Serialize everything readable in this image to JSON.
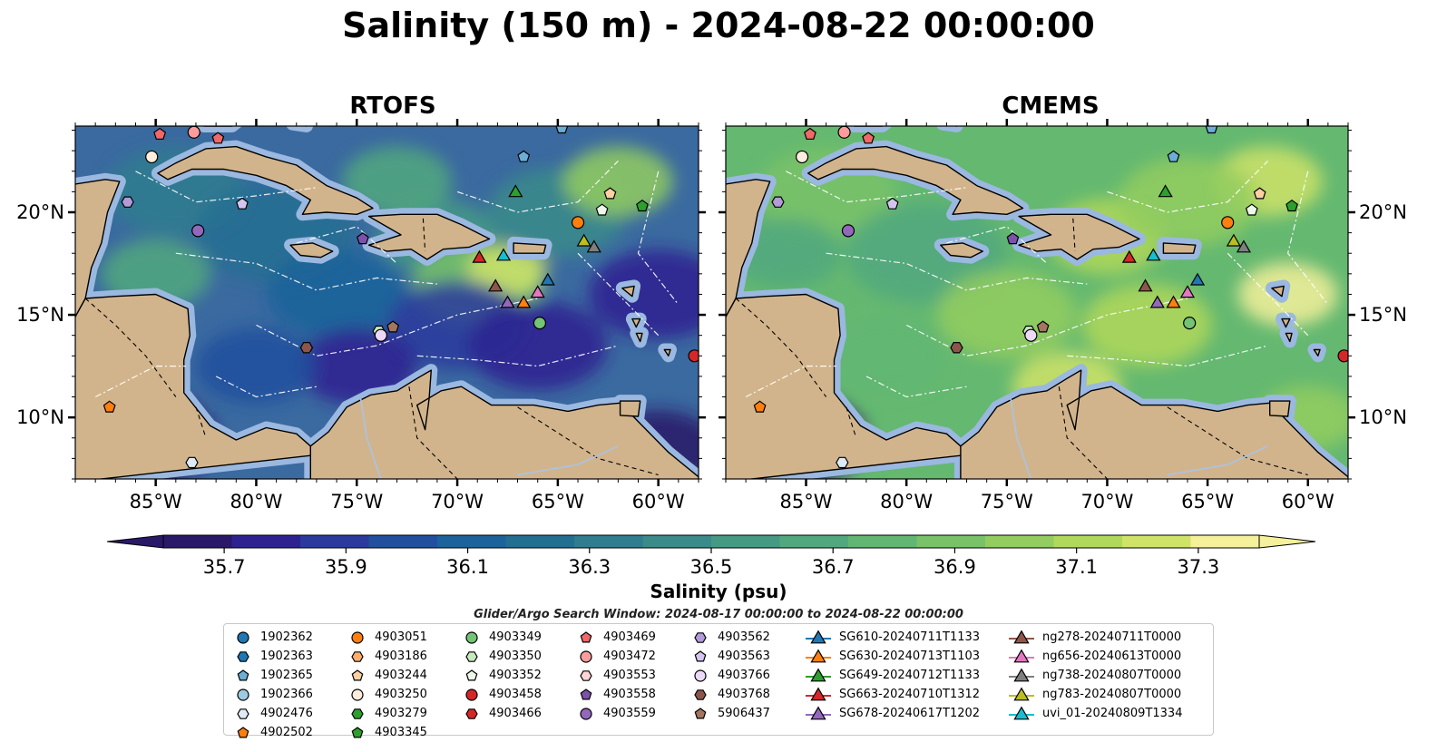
{
  "title": "Salinity (150 m) - 2024-08-22 00:00:00",
  "panels": [
    {
      "id": "left",
      "title": "RTOFS",
      "ocean_base": "#3b6aa0"
    },
    {
      "id": "right",
      "title": "CMEMS",
      "ocean_base": "#64b870"
    }
  ],
  "map": {
    "lon_range": [
      -89,
      -58
    ],
    "lat_range": [
      7,
      24.2
    ],
    "x_ticks": [
      -85,
      -80,
      -75,
      -70,
      -65,
      -60
    ],
    "x_tick_labels": [
      "85°W",
      "80°W",
      "75°W",
      "70°W",
      "65°W",
      "60°W"
    ],
    "y_ticks": [
      10,
      15,
      20
    ],
    "y_tick_labels": [
      "10°N",
      "15°N",
      "20°N"
    ],
    "land_color": "#d2b48c",
    "shelf_color": "#9ab8e0"
  },
  "colorbar": {
    "label": "Salinity (psu)",
    "min": 35.6,
    "max": 37.4,
    "ticks": [
      35.7,
      35.9,
      36.1,
      36.3,
      36.5,
      36.7,
      36.9,
      37.1,
      37.3
    ],
    "tick_labels": [
      "35.7",
      "35.9",
      "36.1",
      "36.3",
      "36.5",
      "36.7",
      "36.9",
      "37.1",
      "37.3"
    ],
    "colors": [
      "#2a1868",
      "#2d2290",
      "#2b3a9c",
      "#22509e",
      "#1b639a",
      "#236f92",
      "#2f7d8e",
      "#3a8b8a",
      "#459a84",
      "#52a87e",
      "#62b673",
      "#79c267",
      "#93cc5f",
      "#b0d85b",
      "#cfe369",
      "#f5f09a"
    ]
  },
  "search_window": "Glider/Argo Search Window: 2024-08-17 00:00:00 to 2024-08-22 00:00:00",
  "legend": {
    "columns": [
      [
        {
          "label": "1902362",
          "marker": "circle",
          "color": "#1f77b4"
        },
        {
          "label": "1902363",
          "marker": "hexagon",
          "color": "#1f77b4"
        },
        {
          "label": "1902365",
          "marker": "pentagon",
          "color": "#6baed6"
        },
        {
          "label": "1902366",
          "marker": "circle",
          "color": "#9ecae1"
        },
        {
          "label": "4902476",
          "marker": "hexagon",
          "color": "#deebf7"
        },
        {
          "label": "4902502",
          "marker": "pentagon",
          "color": "#ff7f0e"
        }
      ],
      [
        {
          "label": "4903051",
          "marker": "circle",
          "color": "#ff7f0e"
        },
        {
          "label": "4903186",
          "marker": "hexagon",
          "color": "#fdae6b"
        },
        {
          "label": "4903244",
          "marker": "pentagon",
          "color": "#fdd0a2"
        },
        {
          "label": "4903250",
          "marker": "circle",
          "color": "#feedde"
        },
        {
          "label": "4903279",
          "marker": "hexagon",
          "color": "#2ca02c"
        },
        {
          "label": "4903345",
          "marker": "pentagon",
          "color": "#2ca02c"
        }
      ],
      [
        {
          "label": "4903349",
          "marker": "circle",
          "color": "#74c476"
        },
        {
          "label": "4903350",
          "marker": "hexagon",
          "color": "#c7e9c0"
        },
        {
          "label": "4903352",
          "marker": "pentagon",
          "color": "#edf8e9"
        },
        {
          "label": "4903458",
          "marker": "circle",
          "color": "#d62728"
        },
        {
          "label": "4903466",
          "marker": "hexagon",
          "color": "#d62728"
        }
      ],
      [
        {
          "label": "4903469",
          "marker": "pentagon",
          "color": "#f16868"
        },
        {
          "label": "4903472",
          "marker": "circle",
          "color": "#fc9c9c"
        },
        {
          "label": "4903553",
          "marker": "hexagon",
          "color": "#fdd4d4"
        },
        {
          "label": "4903558",
          "marker": "pentagon",
          "color": "#7b52ab"
        },
        {
          "label": "4903559",
          "marker": "circle",
          "color": "#9467bd"
        }
      ],
      [
        {
          "label": "4903562",
          "marker": "hexagon",
          "color": "#b29bd8"
        },
        {
          "label": "4903563",
          "marker": "pentagon",
          "color": "#d4c5f0"
        },
        {
          "label": "4903766",
          "marker": "circle",
          "color": "#ecd9f7"
        },
        {
          "label": "4903768",
          "marker": "hexagon",
          "color": "#8c564b"
        },
        {
          "label": "5906437",
          "marker": "pentagon",
          "color": "#a47560"
        }
      ],
      [
        {
          "label": "SG610-20240711T1133",
          "marker": "triangle",
          "color": "#1f77b4"
        },
        {
          "label": "SG630-20240713T1103",
          "marker": "triangle",
          "color": "#ff7f0e"
        },
        {
          "label": "SG649-20240712T1133",
          "marker": "triangle",
          "color": "#2ca02c"
        },
        {
          "label": "SG663-20240710T1312",
          "marker": "triangle",
          "color": "#d62728"
        },
        {
          "label": "SG678-20240617T1202",
          "marker": "triangle",
          "color": "#9467bd"
        }
      ],
      [
        {
          "label": "ng278-20240711T0000",
          "marker": "triangle",
          "color": "#8c564b"
        },
        {
          "label": "ng656-20240613T0000",
          "marker": "triangle",
          "color": "#e377c2"
        },
        {
          "label": "ng738-20240807T0000",
          "marker": "triangle",
          "color": "#7f7f7f"
        },
        {
          "label": "ng783-20240807T0000",
          "marker": "triangle",
          "color": "#bcbd22"
        },
        {
          "label": "uvi_01-20240809T1334",
          "marker": "triangle",
          "color": "#17becf"
        }
      ]
    ]
  },
  "points": [
    {
      "label": "1902365",
      "lon": -64.8,
      "lat": 24.1
    },
    {
      "label": "4903469",
      "lon": -84.8,
      "lat": 23.8
    },
    {
      "label": "4903472",
      "lon": -83.1,
      "lat": 23.9
    },
    {
      "label": "4903469",
      "lon": -81.9,
      "lat": 23.6
    },
    {
      "label": "4903250",
      "lon": -85.2,
      "lat": 22.7
    },
    {
      "label": "1902365",
      "lon": -66.7,
      "lat": 22.7
    },
    {
      "label": "4903562",
      "lon": -86.4,
      "lat": 20.5
    },
    {
      "label": "4903563",
      "lon": -80.7,
      "lat": 20.4
    },
    {
      "label": "4903244",
      "lon": -62.4,
      "lat": 20.9
    },
    {
      "label": "4903352",
      "lon": -62.8,
      "lat": 20.1
    },
    {
      "label": "4903345",
      "lon": -60.8,
      "lat": 20.3
    },
    {
      "label": "4903051",
      "lon": -64.0,
      "lat": 19.5
    },
    {
      "label": "4903559",
      "lon": -82.9,
      "lat": 19.1
    },
    {
      "label": "4903558",
      "lon": -74.7,
      "lat": 18.7
    },
    {
      "label": "4903349",
      "lon": -65.9,
      "lat": 14.6
    },
    {
      "label": "4903350",
      "lon": -73.9,
      "lat": 14.2
    },
    {
      "label": "4903766",
      "lon": -73.8,
      "lat": 14.0
    },
    {
      "label": "5906437",
      "lon": -73.2,
      "lat": 14.4
    },
    {
      "label": "4903768",
      "lon": -77.5,
      "lat": 13.4
    },
    {
      "label": "4903458",
      "lon": -58.2,
      "lat": 13.0
    },
    {
      "label": "4902502",
      "lon": -87.3,
      "lat": 10.5
    },
    {
      "label": "4902476",
      "lon": -83.2,
      "lat": 7.8
    },
    {
      "label": "SG649-20240712T1133",
      "lon": -67.1,
      "lat": 21.0
    },
    {
      "label": "SG663-20240710T1312",
      "lon": -68.9,
      "lat": 17.8
    },
    {
      "label": "uvi_01-20240809T1334",
      "lon": -67.7,
      "lat": 17.9
    },
    {
      "label": "ng783-20240807T0000",
      "lon": -63.7,
      "lat": 18.6
    },
    {
      "label": "ng738-20240807T0000",
      "lon": -63.2,
      "lat": 18.3
    },
    {
      "label": "SG610-20240711T1133",
      "lon": -65.5,
      "lat": 16.7
    },
    {
      "label": "ng278-20240711T0000",
      "lon": -68.1,
      "lat": 16.4
    },
    {
      "label": "ng656-20240613T0000",
      "lon": -66.0,
      "lat": 16.1
    },
    {
      "label": "SG678-20240617T1202",
      "lon": -67.5,
      "lat": 15.6
    },
    {
      "label": "SG630-20240713T1103",
      "lon": -66.7,
      "lat": 15.6
    }
  ]
}
